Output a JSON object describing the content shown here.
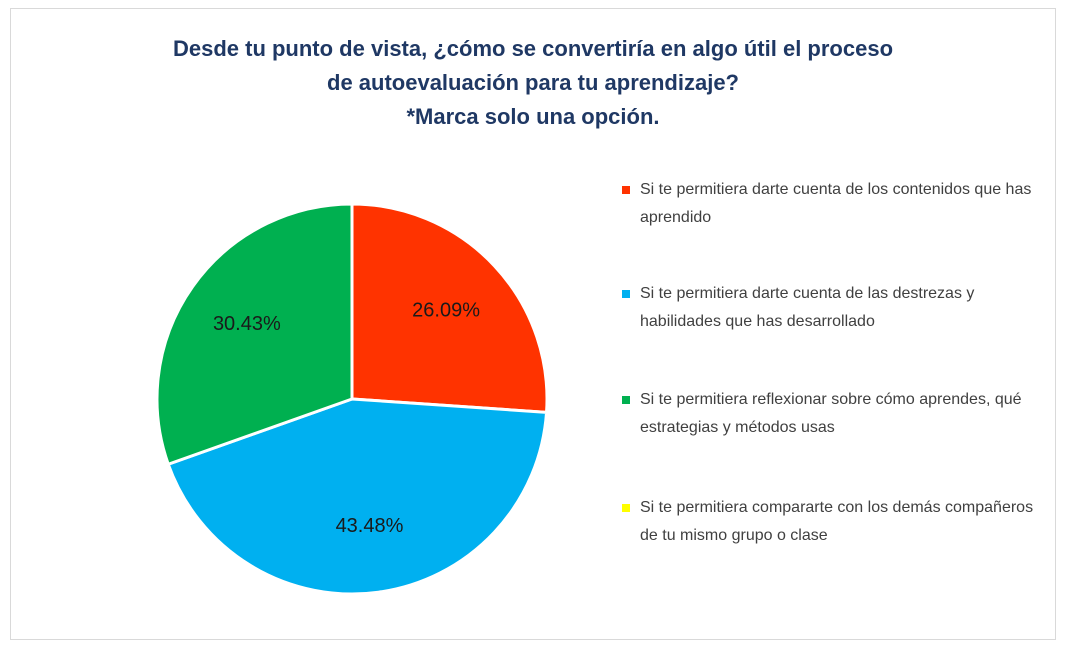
{
  "chart_data": {
    "type": "pie",
    "title": [
      "Desde tu punto de vista, ¿cómo se convertiría en algo útil el proceso",
      "de autoevaluación para tu aprendizaje?"
    ],
    "subtitle": "*Marca solo una opción.",
    "categories": [
      "Si te permitiera darte cuenta de los contenidos que has aprendido",
      "Si te permitiera darte cuenta de las destrezas y habilidades que has desarrollado",
      "Si te permitiera reflexionar sobre cómo aprendes, qué estrategias y métodos usas",
      "Si te permitiera compararte con los demás compañeros de tu mismo grupo o clase"
    ],
    "values": [
      26.09,
      43.48,
      30.43,
      0
    ],
    "value_labels": [
      "26.09%",
      "43.48%",
      "30.43%",
      null
    ],
    "colors": [
      "#ff3300",
      "#00b0f0",
      "#00b050",
      "#ffff00"
    ],
    "legend": "right"
  }
}
